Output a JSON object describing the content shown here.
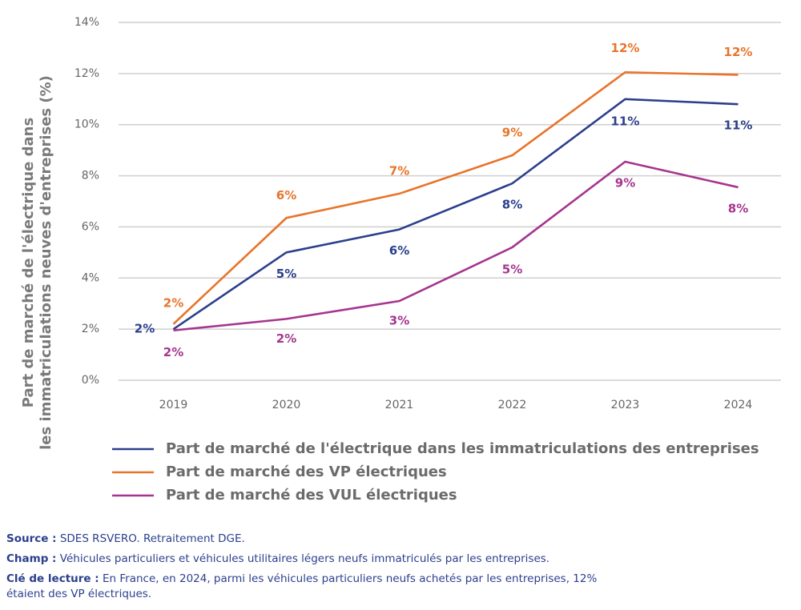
{
  "chart_data": {
    "type": "line",
    "y_label": [
      "Part de marché de l'électrique dans",
      "les immatriculations neuves d'entreprises (%)"
    ],
    "categories": [
      "2019",
      "2020",
      "2021",
      "2022",
      "2023",
      "2024"
    ],
    "series": [
      {
        "name": "Part de marché de l'électrique dans les immatriculations des entreprises",
        "color": "#2b3f8c",
        "values": [
          2.0,
          5.0,
          5.9,
          7.7,
          11.0,
          10.8
        ],
        "value_labels": [
          "2%",
          "5%",
          "6%",
          "8%",
          "11%",
          "11%"
        ]
      },
      {
        "name": "Part de marché des VP électriques",
        "color": "#e8742a",
        "values": [
          2.2,
          6.35,
          7.3,
          8.8,
          12.05,
          11.95
        ],
        "value_labels": [
          "2%",
          "6%",
          "7%",
          "9%",
          "12%",
          "12%"
        ]
      },
      {
        "name": "Part de marché des VUL électriques",
        "color": "#a5358f",
        "values": [
          1.95,
          2.4,
          3.1,
          5.2,
          8.55,
          7.55
        ],
        "value_labels": [
          "2%",
          "2%",
          "3%",
          "5%",
          "9%",
          "8%"
        ]
      }
    ],
    "ylim": [
      0,
      14
    ],
    "yticks": [
      {
        "value": 0,
        "label": "0%"
      },
      {
        "value": 2,
        "label": "2%"
      },
      {
        "value": 4,
        "label": "4%"
      },
      {
        "value": 6,
        "label": "6%"
      },
      {
        "value": 8,
        "label": "8%"
      },
      {
        "value": 10,
        "label": "10%"
      },
      {
        "value": 12,
        "label": "12%"
      },
      {
        "value": 14,
        "label": "14%"
      }
    ],
    "grid": true
  },
  "notes": [
    {
      "label": "Source :",
      "text": "SDES RSVERO. Retraitement DGE."
    },
    {
      "label": "Champ :",
      "text": "Véhicules particuliers et véhicules utilitaires légers neufs immatriculés par les entreprises."
    },
    {
      "label": "Clé de lecture :",
      "text": "En France, en 2024, parmi les véhicules particuliers neufs achetés par les entreprises, 12% étaient des VP électriques."
    }
  ]
}
